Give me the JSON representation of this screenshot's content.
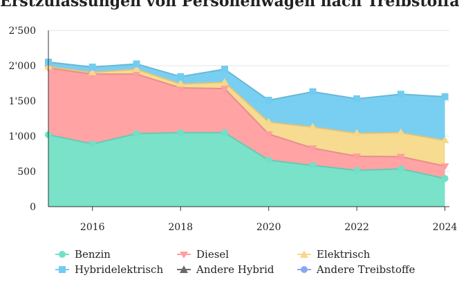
{
  "chart_data": {
    "type": "area",
    "stacked": true,
    "title": "Erstzulassungen von Personenwagen nach Treibstoffart",
    "xlabel": "",
    "ylabel": "",
    "x": [
      2015,
      2016,
      2017,
      2018,
      2019,
      2020,
      2021,
      2022,
      2023,
      2024
    ],
    "x_ticks": [
      "2016",
      "2018",
      "2020",
      "2022",
      "2024"
    ],
    "xlim": [
      2015,
      2024.1
    ],
    "ylim": [
      0,
      2500
    ],
    "y_ticks": [
      "0",
      "500",
      "1'000",
      "1'500",
      "2'000",
      "2'500"
    ],
    "grid": true,
    "legend_position": "bottom",
    "series": [
      {
        "name": "Benzin",
        "color": "#72e0c6",
        "marker": "circle",
        "values": [
          1020,
          890,
          1035,
          1050,
          1050,
          660,
          585,
          515,
          535,
          400
        ]
      },
      {
        "name": "Diesel",
        "color": "#ff9ea0",
        "marker": "triangle-down",
        "values": [
          945,
          990,
          845,
          635,
          625,
          370,
          245,
          200,
          175,
          175
        ]
      },
      {
        "name": "Elektrisch",
        "color": "#f5d98a",
        "marker": "triangle-up",
        "values": [
          20,
          25,
          70,
          55,
          90,
          170,
          300,
          325,
          340,
          365
        ]
      },
      {
        "name": "Hybridelektrisch",
        "color": "#72ccf0",
        "marker": "square",
        "values": [
          65,
          75,
          75,
          105,
          185,
          310,
          500,
          490,
          545,
          620
        ]
      },
      {
        "name": "Andere Hybrid",
        "color": "#6a6a6a",
        "marker": "triangle-up",
        "values": [
          0,
          0,
          0,
          0,
          0,
          0,
          0,
          0,
          0,
          0
        ]
      },
      {
        "name": "Andere Treibstoffe",
        "color": "#8aa8f0",
        "marker": "circle",
        "values": [
          0,
          0,
          0,
          0,
          0,
          0,
          0,
          0,
          0,
          0
        ]
      }
    ]
  }
}
